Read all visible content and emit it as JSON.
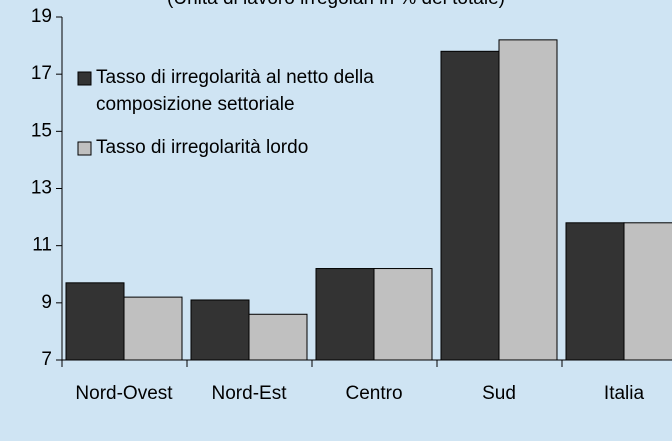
{
  "chart_data": {
    "type": "bar",
    "subtitle": "(Unità di lavoro irregolari in % del totale)",
    "categories": [
      "Nord-Ovest",
      "Nord-Est",
      "Centro",
      "Sud",
      "Italia"
    ],
    "series": [
      {
        "name": "Tasso di irregolarità al netto della composizione settoriale",
        "color": "#333333",
        "values": [
          9.7,
          9.1,
          10.2,
          17.8,
          11.8
        ]
      },
      {
        "name": "Tasso di irregolarità lordo",
        "color": "#c0c0c0",
        "values": [
          9.2,
          8.6,
          10.2,
          18.2,
          11.8
        ]
      }
    ],
    "ylim": [
      7,
      19
    ],
    "yticks": [
      7,
      9,
      11,
      13,
      15,
      17,
      19
    ],
    "legend": "upper left"
  }
}
